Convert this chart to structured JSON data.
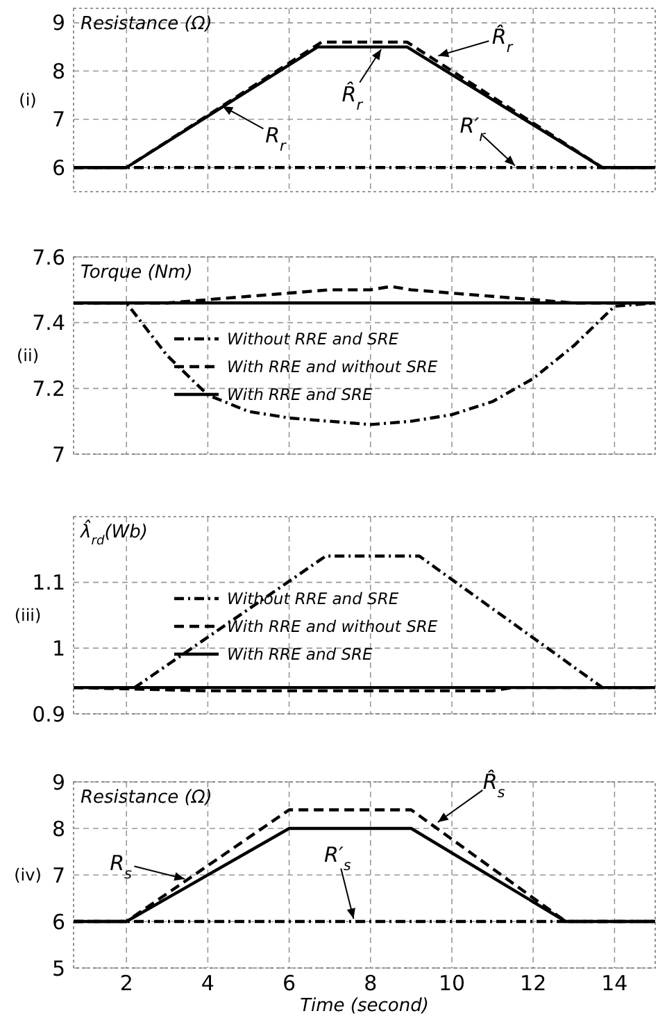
{
  "chart_data": [
    {
      "type": "line",
      "ylabel": "Resistance (Ω)",
      "xlim": [
        0.7,
        15
      ],
      "xticks": [
        2,
        4,
        6,
        8,
        10,
        12,
        14
      ],
      "ylim": [
        5.5,
        9.3
      ],
      "yticks": [
        6,
        7,
        8,
        9
      ],
      "grid": true,
      "tick_labels": "y",
      "legend": false,
      "series": [
        {
          "color": "#000000",
          "line_style": "solid",
          "x": [
            0.7,
            2,
            6.7,
            8.9,
            13.7,
            15
          ],
          "values": [
            6,
            6,
            8.5,
            8.5,
            6,
            6
          ]
        },
        {
          "color": "#000000",
          "line_style": "dashed",
          "x": [
            0.7,
            2,
            6.8,
            8.9,
            13.7,
            15
          ],
          "values": [
            6,
            6,
            8.6,
            8.6,
            6,
            6
          ]
        },
        {
          "color": "#000000",
          "line_style": "dotted",
          "x": [
            0.7,
            15
          ],
          "values": [
            6,
            6
          ]
        }
      ],
      "annotations": [
        "(i)",
        {
          "text": "R̂$_{r}$",
          "x": 9.6,
          "y": 8.3
        },
        {
          "text": "R̂$_{r}$",
          "x": 8.3,
          "y": 8.5
        },
        {
          "text": "R$_{r}$",
          "x": 4.3,
          "y": 7.3
        },
        {
          "text": "R′$_{r}$",
          "x": 11.6,
          "y": 6
        }
      ]
    },
    {
      "type": "line",
      "ylabel": "Torque (Nm)",
      "xlim": [
        0.7,
        15
      ],
      "xticks": [
        2,
        4,
        6,
        8,
        10,
        12,
        14
      ],
      "ylim": [
        7,
        7.6
      ],
      "yticks": [
        7,
        7.2,
        7.4,
        7.6
      ],
      "grid": true,
      "tick_labels": "y",
      "legend": "center",
      "series": [
        {
          "name": "Without RRE and SRE",
          "color": "#000000",
          "line_style": "dotted",
          "x": [
            0.7,
            2,
            3,
            4,
            5,
            6,
            7,
            8,
            9,
            10,
            11,
            12,
            13,
            14,
            15
          ],
          "values": [
            7.46,
            7.46,
            7.3,
            7.18,
            7.13,
            7.11,
            7.1,
            7.09,
            7.1,
            7.12,
            7.16,
            7.23,
            7.33,
            7.45,
            7.46
          ]
        },
        {
          "name": "With RRE and without SRE",
          "color": "#000000",
          "line_style": "dashed",
          "x": [
            0.7,
            2,
            3,
            4,
            5,
            6,
            7,
            8,
            8.5,
            9,
            10,
            11,
            12,
            13,
            15
          ],
          "values": [
            7.46,
            7.46,
            7.46,
            7.47,
            7.48,
            7.49,
            7.5,
            7.5,
            7.51,
            7.5,
            7.49,
            7.48,
            7.47,
            7.46,
            7.46
          ]
        },
        {
          "name": "With RRE and SRE",
          "color": "#000000",
          "line_style": "solid",
          "x": [
            0.7,
            15
          ],
          "values": [
            7.46,
            7.46
          ]
        }
      ],
      "annotations": [
        "(ii)"
      ]
    },
    {
      "type": "line",
      "ylabel": "λ̂$_{rd}$(Wb)",
      "xlim": [
        0.7,
        15
      ],
      "xticks": [
        2,
        4,
        6,
        8,
        10,
        12,
        14
      ],
      "ylim": [
        0.9,
        1.2
      ],
      "yticks": [
        0.9,
        1,
        1.1
      ],
      "grid": true,
      "tick_labels": "y",
      "legend": "center",
      "series": [
        {
          "name": "Without RRE and SRE",
          "color": "#000000",
          "line_style": "dotted",
          "x": [
            0.7,
            2.2,
            6.9,
            9.2,
            13.7,
            15
          ],
          "values": [
            0.94,
            0.94,
            1.14,
            1.14,
            0.94,
            0.94
          ]
        },
        {
          "name": "With RRE and without SRE",
          "color": "#000000",
          "line_style": "dashed",
          "x": [
            0.7,
            4,
            11,
            11.5,
            15
          ],
          "values": [
            0.94,
            0.935,
            0.935,
            0.94,
            0.94
          ]
        },
        {
          "name": "With RRE and SRE",
          "color": "#000000",
          "line_style": "solid",
          "x": [
            0.7,
            15
          ],
          "values": [
            0.94,
            0.94
          ]
        }
      ],
      "annotations": [
        "(iii)"
      ]
    },
    {
      "type": "line",
      "ylabel": "Resistance (Ω)",
      "xlabel": "Time (second)",
      "xlim": [
        0.7,
        15
      ],
      "xticks": [
        2,
        4,
        6,
        8,
        10,
        12,
        14
      ],
      "ylim": [
        5,
        9
      ],
      "yticks": [
        5,
        6,
        7,
        8,
        9
      ],
      "grid": true,
      "legend": false,
      "series": [
        {
          "color": "#000000",
          "line_style": "solid",
          "x": [
            0.7,
            2,
            6,
            9,
            12.8,
            15
          ],
          "values": [
            6,
            6,
            8,
            8,
            6,
            6
          ]
        },
        {
          "color": "#000000",
          "line_style": "dashed",
          "x": [
            0.7,
            2,
            6,
            9,
            12.8,
            15
          ],
          "values": [
            6,
            6,
            8.4,
            8.4,
            6,
            6
          ]
        },
        {
          "color": "#000000",
          "line_style": "dotted",
          "x": [
            0.7,
            15
          ],
          "values": [
            6,
            6
          ]
        }
      ],
      "annotations": [
        "(iv)",
        {
          "text": "R$_{s}$",
          "x": 3.5,
          "y": 6.9
        },
        {
          "text": "R̂$_{s}$",
          "x": 9.6,
          "y": 8.1
        },
        {
          "text": "R′$_{s}$",
          "x": 7.6,
          "y": 6
        }
      ]
    }
  ]
}
